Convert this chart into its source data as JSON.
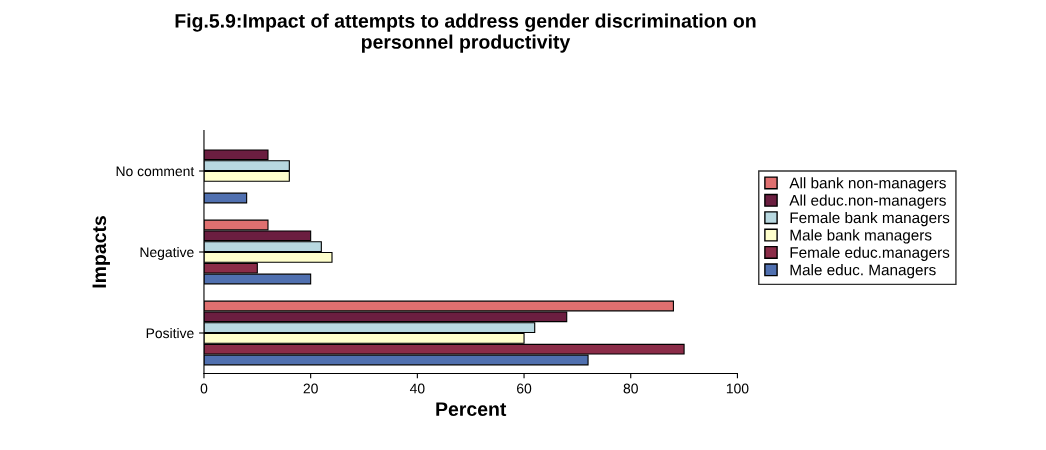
{
  "chart_data": {
    "type": "bar",
    "orientation": "horizontal",
    "title": "Fig.5.9:Impact of attempts to address gender discrimination on\npersonnel productivity",
    "xlabel": "Percent",
    "ylabel": "Impacts",
    "categories": [
      "No comment",
      "Negative",
      "Positive"
    ],
    "series": [
      {
        "name": "All bank non-managers",
        "color": "#e07070",
        "values": [
          null,
          12,
          88
        ]
      },
      {
        "name": "All educ.non-managers",
        "color": "#6b1e40",
        "values": [
          12,
          20,
          68
        ]
      },
      {
        "name": "Female bank managers",
        "color": "#b8d8e0",
        "values": [
          16,
          22,
          62
        ]
      },
      {
        "name": "Male bank managers",
        "color": "#ffffcc",
        "values": [
          16,
          24,
          60
        ]
      },
      {
        "name": "Female educ.managers",
        "color": "#8b2c48",
        "values": [
          null,
          10,
          90
        ]
      },
      {
        "name": "Male educ. Managers",
        "color": "#5070b0",
        "values": [
          8,
          20,
          72
        ]
      }
    ],
    "xlim": [
      0,
      100
    ],
    "xticks": [
      0,
      20,
      40,
      60,
      80,
      100
    ],
    "grid": false,
    "legend": "right"
  }
}
